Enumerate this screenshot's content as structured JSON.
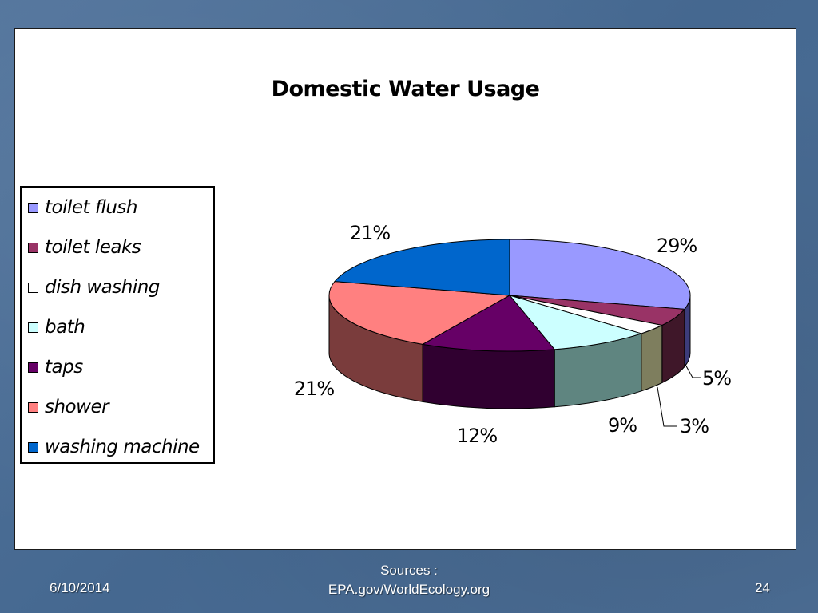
{
  "chart_data": {
    "type": "pie",
    "title": "Domestic Water Usage",
    "legend_position": "left",
    "slices": [
      {
        "label": "toilet flush",
        "value": 29,
        "value_label": "29%",
        "color": "#9999ff",
        "side_color": "#3c3c7a"
      },
      {
        "label": "toilet leaks",
        "value": 5,
        "value_label": "5%",
        "color": "#993366",
        "side_color": "#3f1729"
      },
      {
        "label": "dish washing",
        "value": 3,
        "value_label": "3%",
        "color": "#ffffff",
        "side_color": "#7e7e5e"
      },
      {
        "label": "bath",
        "value": 9,
        "value_label": "9%",
        "color": "#ccffff",
        "side_color": "#5f8580"
      },
      {
        "label": "taps",
        "value": 12,
        "value_label": "12%",
        "color": "#660066",
        "side_color": "#300030"
      },
      {
        "label": "shower",
        "value": 21,
        "value_label": "21%",
        "color": "#ff8080",
        "side_color": "#7a3c3c"
      },
      {
        "label": "washing machine",
        "value": 21,
        "value_label": "21%",
        "color": "#0066cc",
        "side_color": "#003366"
      }
    ]
  },
  "footer": {
    "date": "6/10/2014",
    "source_line1": "Sources :",
    "source_line2": "EPA.gov/WorldEcology.org",
    "page_number": "24"
  },
  "colors": {
    "background": "#4a6c95",
    "panel": "#ffffff"
  }
}
